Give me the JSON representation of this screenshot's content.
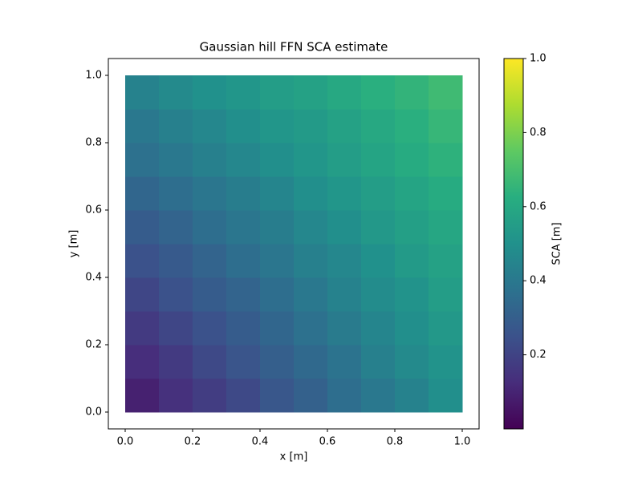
{
  "chart_data": {
    "type": "heatmap",
    "title": "Gaussian hill FFN SCA estimate",
    "xlabel": "x [m]",
    "ylabel": "y [m]",
    "colorbar_label": "SCA [m]",
    "colormap": "viridis",
    "x": [
      0.05,
      0.15,
      0.25,
      0.35,
      0.45,
      0.55,
      0.65,
      0.75,
      0.85,
      0.95
    ],
    "y": [
      0.05,
      0.15,
      0.25,
      0.35,
      0.45,
      0.55,
      0.65,
      0.75,
      0.85,
      0.95
    ],
    "values": [
      [
        0.09,
        0.14,
        0.18,
        0.22,
        0.27,
        0.31,
        0.36,
        0.4,
        0.44,
        0.49
      ],
      [
        0.13,
        0.17,
        0.22,
        0.26,
        0.3,
        0.34,
        0.38,
        0.43,
        0.47,
        0.51
      ],
      [
        0.17,
        0.21,
        0.25,
        0.29,
        0.33,
        0.37,
        0.41,
        0.45,
        0.49,
        0.53
      ],
      [
        0.21,
        0.25,
        0.29,
        0.32,
        0.36,
        0.4,
        0.44,
        0.48,
        0.51,
        0.55
      ],
      [
        0.25,
        0.28,
        0.32,
        0.36,
        0.39,
        0.43,
        0.46,
        0.5,
        0.54,
        0.57
      ],
      [
        0.29,
        0.32,
        0.36,
        0.39,
        0.42,
        0.46,
        0.49,
        0.53,
        0.56,
        0.59
      ],
      [
        0.33,
        0.36,
        0.39,
        0.42,
        0.45,
        0.49,
        0.52,
        0.55,
        0.58,
        0.61
      ],
      [
        0.37,
        0.4,
        0.43,
        0.46,
        0.49,
        0.52,
        0.55,
        0.58,
        0.61,
        0.64
      ],
      [
        0.4,
        0.43,
        0.46,
        0.49,
        0.52,
        0.54,
        0.57,
        0.6,
        0.63,
        0.66
      ],
      [
        0.44,
        0.47,
        0.5,
        0.52,
        0.55,
        0.57,
        0.6,
        0.63,
        0.65,
        0.68
      ]
    ],
    "xlim": [
      -0.05,
      1.05
    ],
    "ylim": [
      -0.05,
      1.05
    ],
    "clim": [
      0.0,
      1.0
    ],
    "xticks": [
      {
        "value": 0,
        "label": "0.0"
      },
      0.2,
      0.4,
      0.6,
      0.8,
      {
        "value": 1,
        "label": "1.0"
      }
    ],
    "yticks": [
      {
        "value": 0,
        "label": "0.0"
      },
      0.2,
      0.4,
      0.6,
      0.8,
      {
        "value": 1,
        "label": "1.0"
      }
    ],
    "cticks": [
      0.2,
      0.4,
      0.6,
      0.8,
      {
        "value": 1,
        "label": "1.0"
      }
    ]
  }
}
